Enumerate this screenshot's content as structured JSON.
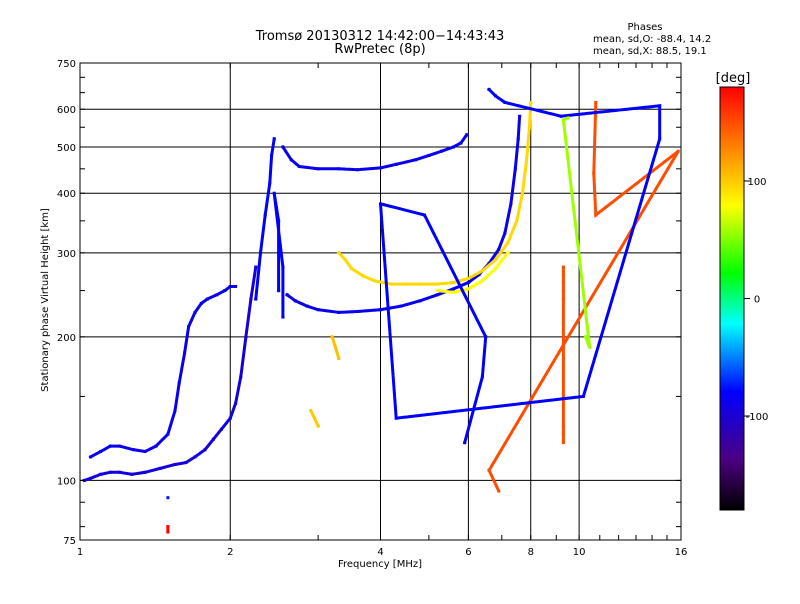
{
  "chart_data": {
    "type": "scatter",
    "title": "Tromsø 20130312 14:42:00−14:43:43",
    "subtitle": "RwPretec (8p)",
    "xlabel": "Frequency [MHz]",
    "ylabel": "Stationary phase Virtual Height [km]",
    "x_scale": "log",
    "y_scale": "log",
    "xlim": [
      1,
      16
    ],
    "ylim": [
      75,
      750
    ],
    "x_ticks": [
      1,
      2,
      4,
      6,
      8,
      10,
      16
    ],
    "x_tick_labels": [
      "1",
      "2",
      "4",
      "6",
      "8",
      "10",
      "16"
    ],
    "y_ticks": [
      75,
      100,
      200,
      300,
      400,
      500,
      600,
      750
    ],
    "y_tick_labels": [
      "75",
      "100",
      "200",
      "300",
      "400",
      "500",
      "600",
      "750"
    ],
    "grid": true,
    "stats": {
      "heading": "Phases",
      "line_o": "mean, sd,O: -88.4, 14.2",
      "line_x": "mean, sd,X:  88.5, 19.1"
    },
    "colorbar": {
      "label": "[deg]",
      "range": [
        -180,
        180
      ],
      "ticks": [
        100,
        0,
        -100
      ],
      "tick_labels": [
        "100",
        "0",
        "-100"
      ],
      "colors": [
        "#000000",
        "#4b0082",
        "#0000ff",
        "#00ffff",
        "#00ff00",
        "#ffff00",
        "#ff8000",
        "#ff0000"
      ]
    },
    "traces": [
      {
        "phase": -110,
        "points": [
          [
            1.02,
            100
          ],
          [
            1.05,
            101
          ],
          [
            1.1,
            103
          ],
          [
            1.15,
            104
          ],
          [
            1.2,
            104
          ],
          [
            1.27,
            103
          ],
          [
            1.35,
            104
          ],
          [
            1.45,
            106
          ],
          [
            1.55,
            108
          ],
          [
            1.63,
            109
          ],
          [
            1.7,
            112
          ],
          [
            1.78,
            116
          ],
          [
            1.85,
            122
          ],
          [
            1.92,
            128
          ],
          [
            2.0,
            135
          ],
          [
            2.05,
            145
          ],
          [
            2.1,
            165
          ],
          [
            2.15,
            200
          ],
          [
            2.2,
            240
          ],
          [
            2.25,
            280
          ]
        ]
      },
      {
        "phase": -105,
        "points": [
          [
            1.05,
            112
          ],
          [
            1.1,
            115
          ],
          [
            1.15,
            118
          ],
          [
            1.2,
            118
          ],
          [
            1.28,
            116
          ],
          [
            1.35,
            115
          ],
          [
            1.42,
            118
          ],
          [
            1.5,
            125
          ],
          [
            1.55,
            140
          ],
          [
            1.58,
            160
          ],
          [
            1.62,
            185
          ],
          [
            1.65,
            210
          ],
          [
            1.7,
            225
          ],
          [
            1.75,
            235
          ],
          [
            1.8,
            240
          ],
          [
            1.88,
            245
          ],
          [
            1.95,
            250
          ],
          [
            2.0,
            255
          ],
          [
            2.05,
            255
          ]
        ]
      },
      {
        "phase": -100,
        "points": [
          [
            2.25,
            240
          ],
          [
            2.3,
            300
          ],
          [
            2.35,
            360
          ],
          [
            2.4,
            420
          ],
          [
            2.42,
            480
          ],
          [
            2.45,
            520
          ]
        ]
      },
      {
        "phase": -105,
        "points": [
          [
            2.55,
            500
          ],
          [
            2.65,
            470
          ],
          [
            2.75,
            455
          ],
          [
            3.0,
            450
          ],
          [
            3.3,
            450
          ],
          [
            3.6,
            448
          ],
          [
            4.0,
            452
          ],
          [
            4.3,
            460
          ],
          [
            4.7,
            470
          ],
          [
            5.0,
            480
          ],
          [
            5.3,
            490
          ],
          [
            5.6,
            500
          ],
          [
            5.8,
            510
          ],
          [
            5.95,
            530
          ]
        ]
      },
      {
        "phase": -105,
        "points": [
          [
            2.6,
            245
          ],
          [
            2.7,
            238
          ],
          [
            2.85,
            232
          ],
          [
            3.0,
            228
          ],
          [
            3.3,
            225
          ],
          [
            3.6,
            226
          ],
          [
            4.0,
            228
          ],
          [
            4.4,
            232
          ],
          [
            4.8,
            238
          ],
          [
            5.2,
            245
          ],
          [
            5.6,
            252
          ],
          [
            6.0,
            260
          ],
          [
            6.3,
            270
          ],
          [
            6.6,
            285
          ],
          [
            6.9,
            305
          ],
          [
            7.1,
            330
          ],
          [
            7.3,
            380
          ],
          [
            7.45,
            450
          ],
          [
            7.55,
            520
          ],
          [
            7.6,
            580
          ]
        ]
      },
      {
        "phase": 95,
        "points": [
          [
            3.3,
            300
          ],
          [
            3.4,
            290
          ],
          [
            3.5,
            278
          ],
          [
            3.7,
            268
          ],
          [
            3.9,
            262
          ],
          [
            4.2,
            258
          ],
          [
            4.5,
            258
          ],
          [
            4.8,
            258
          ],
          [
            5.2,
            258
          ],
          [
            5.6,
            260
          ],
          [
            6.0,
            265
          ],
          [
            6.4,
            275
          ],
          [
            6.8,
            290
          ],
          [
            7.2,
            315
          ],
          [
            7.5,
            350
          ],
          [
            7.7,
            400
          ],
          [
            7.85,
            470
          ],
          [
            7.95,
            550
          ],
          [
            8.0,
            620
          ]
        ]
      },
      {
        "phase": 80,
        "points": [
          [
            5.2,
            250
          ],
          [
            5.6,
            248
          ],
          [
            6.0,
            252
          ],
          [
            6.4,
            262
          ],
          [
            6.8,
            278
          ],
          [
            7.2,
            300
          ]
        ]
      },
      {
        "phase": 105,
        "points": [
          [
            3.2,
            200
          ],
          [
            3.25,
            190
          ],
          [
            3.3,
            180
          ]
        ]
      },
      {
        "phase": 100,
        "points": [
          [
            2.9,
            140
          ],
          [
            2.95,
            135
          ],
          [
            3.0,
            130
          ]
        ]
      },
      {
        "phase": -100,
        "points": [
          [
            2.5,
            250
          ],
          [
            2.5,
            300
          ],
          [
            2.5,
            350
          ],
          [
            2.45,
            400
          ],
          [
            2.55,
            280
          ],
          [
            2.55,
            220
          ]
        ]
      },
      {
        "phase": 150,
        "points": [
          [
            9.3,
            280
          ],
          [
            9.3,
            270
          ],
          [
            9.3,
            260
          ],
          [
            9.3,
            250
          ],
          [
            9.3,
            240
          ],
          [
            9.3,
            180
          ],
          [
            9.3,
            130
          ],
          [
            9.3,
            125
          ],
          [
            9.3,
            120
          ]
        ]
      },
      {
        "phase": 150,
        "points": [
          [
            10.8,
            620
          ],
          [
            10.7,
            440
          ],
          [
            10.8,
            360
          ],
          [
            15.8,
            490
          ],
          [
            6.6,
            105
          ],
          [
            6.9,
            95
          ]
        ]
      },
      {
        "phase": -100,
        "points": [
          [
            6.6,
            660
          ],
          [
            6.8,
            640
          ],
          [
            7.1,
            620
          ],
          [
            9.2,
            580
          ],
          [
            14.5,
            610
          ],
          [
            14.5,
            520
          ],
          [
            10.2,
            150
          ],
          [
            4.3,
            135
          ],
          [
            4.0,
            380
          ],
          [
            4.9,
            360
          ],
          [
            6.5,
            200
          ],
          [
            6.4,
            165
          ],
          [
            5.9,
            120
          ]
        ]
      },
      {
        "phase": 50,
        "points": [
          [
            9.5,
            575
          ],
          [
            9.3,
            570
          ],
          [
            10.5,
            190
          ],
          [
            10.3,
            200
          ]
        ]
      },
      {
        "phase": 180,
        "points": [
          [
            1.5,
            78
          ],
          [
            1.5,
            80
          ]
        ]
      },
      {
        "phase": -95,
        "points": [
          [
            1.5,
            92
          ]
        ]
      }
    ]
  }
}
